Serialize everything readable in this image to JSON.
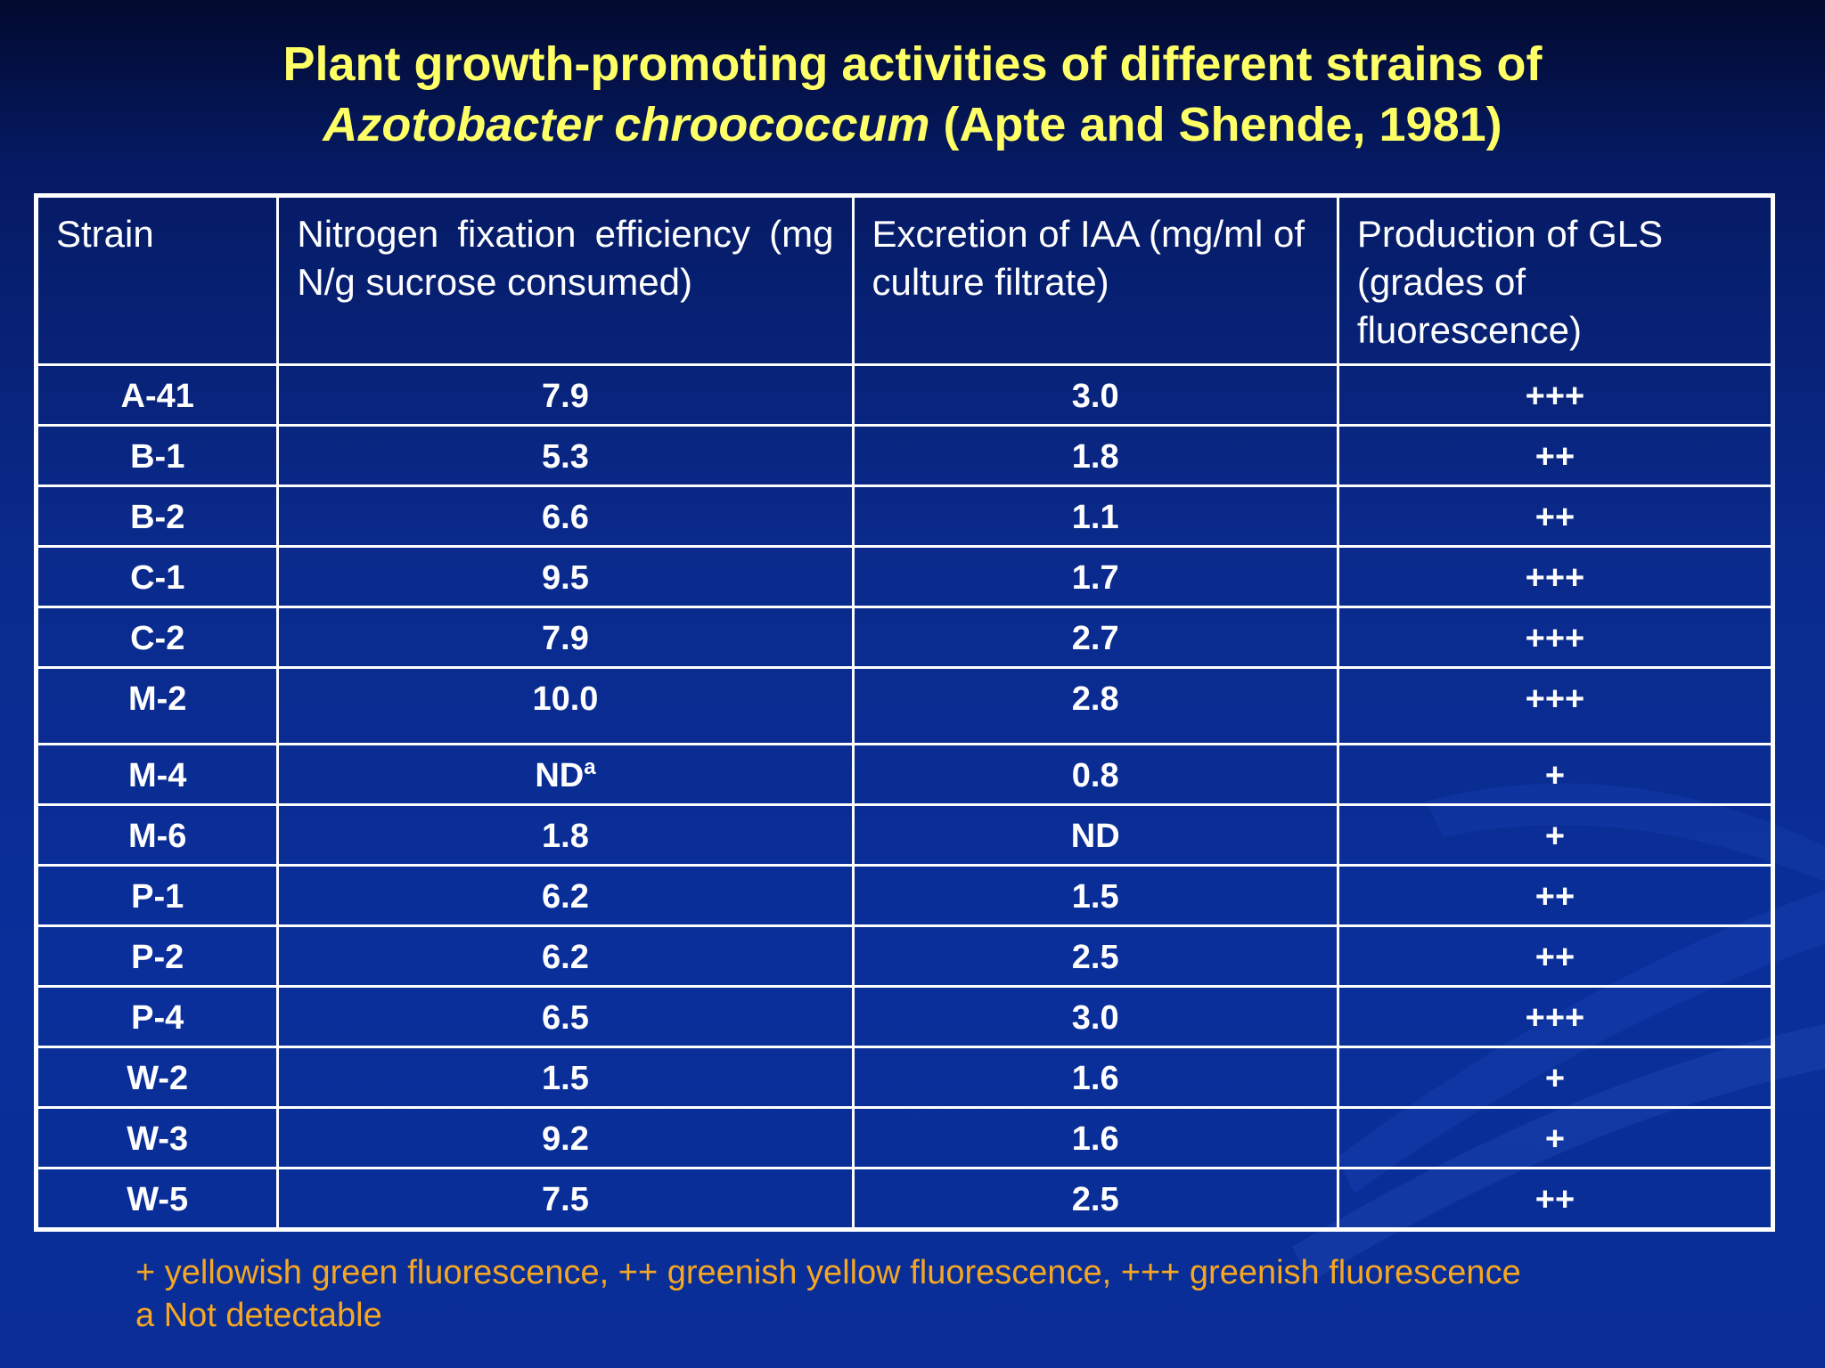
{
  "title": {
    "line1": "Plant growth-promoting activities of different strains of",
    "species": "Azotobacter chroococcum",
    "citation": " (Apte and Shende, 1981)"
  },
  "table": {
    "headers": [
      "Strain",
      "Nitrogen fixation efficiency (mg N/g sucrose consumed)",
      "Excretion of IAA (mg/ml of culture filtrate)",
      "Production of GLS (grades of fluorescence)"
    ],
    "rows": [
      {
        "strain": "A-41",
        "n_fix": "7.9",
        "n_sup": "",
        "iaa": "3.0",
        "gls": "+++"
      },
      {
        "strain": "B-1",
        "n_fix": "5.3",
        "n_sup": "",
        "iaa": "1.8",
        "gls": "++"
      },
      {
        "strain": "B-2",
        "n_fix": "6.6",
        "n_sup": "",
        "iaa": "1.1",
        "gls": "++"
      },
      {
        "strain": "C-1",
        "n_fix": "9.5",
        "n_sup": "",
        "iaa": "1.7",
        "gls": "+++"
      },
      {
        "strain": "C-2",
        "n_fix": "7.9",
        "n_sup": "",
        "iaa": "2.7",
        "gls": "+++"
      },
      {
        "strain": "M-2",
        "n_fix": "10.0",
        "n_sup": "",
        "iaa": "2.8",
        "gls": "+++"
      },
      {
        "strain": "M-4",
        "n_fix": "ND",
        "n_sup": "a",
        "iaa": "0.8",
        "gls": "+"
      },
      {
        "strain": "M-6",
        "n_fix": "1.8",
        "n_sup": "",
        "iaa": "ND",
        "gls": "+"
      },
      {
        "strain": "P-1",
        "n_fix": "6.2",
        "n_sup": "",
        "iaa": "1.5",
        "gls": "++"
      },
      {
        "strain": "P-2",
        "n_fix": "6.2",
        "n_sup": "",
        "iaa": "2.5",
        "gls": "++"
      },
      {
        "strain": "P-4",
        "n_fix": "6.5",
        "n_sup": "",
        "iaa": "3.0",
        "gls": "+++"
      },
      {
        "strain": "W-2",
        "n_fix": "1.5",
        "n_sup": "",
        "iaa": "1.6",
        "gls": "+"
      },
      {
        "strain": "W-3",
        "n_fix": "9.2",
        "n_sup": "",
        "iaa": "1.6",
        "gls": "+"
      },
      {
        "strain": "W-5",
        "n_fix": "7.5",
        "n_sup": "",
        "iaa": "2.5",
        "gls": "++"
      }
    ]
  },
  "footnotes": [
    "+ yellowish green fluorescence, ++ greenish yellow fluorescence, +++ greenish fluorescence",
    "a Not detectable"
  ],
  "colors": {
    "title": "#ffff66",
    "table_text": "#ffffff",
    "footnote": "#f5a623",
    "background": "#0a2a8c"
  }
}
